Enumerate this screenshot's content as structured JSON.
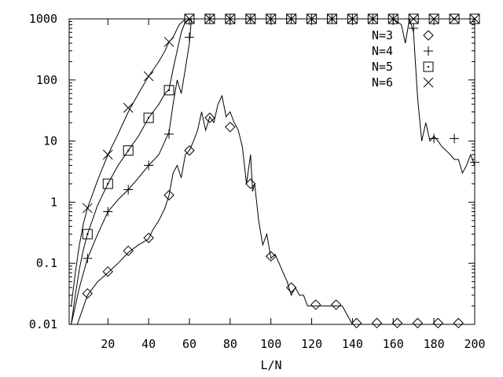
{
  "chart_data": {
    "type": "line",
    "xlabel": "L/N",
    "ylabel": "",
    "xlim": [
      1,
      200
    ],
    "ylim": [
      0.01,
      1000
    ],
    "yscale": "log",
    "grid": false,
    "legend_position": "top-right",
    "x_ticks": [
      20,
      40,
      60,
      80,
      100,
      120,
      140,
      160,
      180,
      200
    ],
    "x_tick_labels": [
      "20",
      "40",
      "60",
      "80",
      "100",
      "120",
      "140",
      "160",
      "180",
      "200"
    ],
    "y_ticks": [
      0.01,
      0.1,
      1,
      10,
      100,
      1000
    ],
    "y_tick_labels": [
      "0.01",
      "0.1",
      "1",
      "10",
      "100",
      "1000"
    ],
    "series": [
      {
        "name": "N=3",
        "marker": "diamond",
        "x": [
          2,
          5,
          10,
          15,
          20,
          25,
          30,
          35,
          40,
          42,
          45,
          48,
          50,
          52,
          54,
          56,
          58,
          60,
          62,
          64,
          66,
          68,
          70,
          72,
          74,
          76,
          78,
          80,
          82,
          84,
          86,
          88,
          90,
          91,
          92,
          94,
          96,
          98,
          100,
          102,
          104,
          106,
          108,
          110,
          112,
          114,
          116,
          118,
          120,
          125,
          130,
          135,
          140,
          142,
          145,
          150,
          160,
          170,
          180,
          190,
          200
        ],
        "y": [
          0.01,
          0.01,
          0.03,
          0.05,
          0.07,
          0.1,
          0.15,
          0.2,
          0.25,
          0.35,
          0.5,
          0.8,
          1.3,
          3,
          4,
          2.5,
          6,
          7,
          10,
          15,
          30,
          15,
          25,
          20,
          40,
          55,
          25,
          30,
          20,
          15,
          8,
          2,
          6,
          1.5,
          2,
          0.5,
          0.2,
          0.3,
          0.12,
          0.14,
          0.1,
          0.07,
          0.05,
          0.03,
          0.04,
          0.03,
          0.03,
          0.02,
          0.02,
          0.02,
          0.02,
          0.02,
          0.01,
          0.01,
          0.01,
          0.01,
          0.01,
          0.01,
          0.01,
          0.01,
          0.01
        ],
        "marker_x": [
          10,
          20,
          30,
          40,
          50,
          60,
          70,
          80,
          90,
          100,
          110,
          122,
          132,
          142,
          152,
          162,
          172,
          182,
          192
        ],
        "marker_y": [
          0.032,
          0.073,
          0.16,
          0.26,
          1.3,
          7,
          24,
          17,
          2,
          0.13,
          0.04,
          0.021,
          0.021,
          0.0105,
          0.0105,
          0.0105,
          0.0105,
          0.0105,
          0.0105
        ]
      },
      {
        "name": "N=4",
        "marker": "plus",
        "x": [
          2,
          4,
          6,
          8,
          10,
          15,
          20,
          25,
          30,
          35,
          40,
          45,
          48,
          50,
          52,
          54,
          56,
          58,
          60,
          61,
          62,
          64,
          66,
          80,
          100,
          120,
          140,
          160,
          164,
          166,
          168,
          170,
          172,
          174,
          176,
          178,
          180,
          182,
          184,
          186,
          188,
          190,
          192,
          194,
          196,
          198,
          200
        ],
        "y": [
          0.01,
          0.02,
          0.04,
          0.07,
          0.12,
          0.3,
          0.7,
          1.1,
          1.6,
          2.5,
          4,
          6,
          10,
          14,
          40,
          100,
          60,
          150,
          400,
          1000,
          1000,
          1000,
          1000,
          1000,
          1000,
          1000,
          1000,
          1000,
          800,
          400,
          1000,
          600,
          50,
          10,
          20,
          10,
          12,
          10,
          8,
          7,
          6,
          5,
          5,
          3,
          4,
          6,
          4
        ],
        "marker_x": [
          10,
          20,
          30,
          40,
          50,
          60,
          70,
          80,
          90,
          100,
          110,
          120,
          130,
          140,
          150,
          160,
          170,
          180,
          190,
          200
        ],
        "marker_y": [
          0.12,
          0.7,
          1.6,
          4,
          13,
          500,
          1000,
          1000,
          1000,
          1000,
          1000,
          1000,
          1000,
          1000,
          1000,
          1000,
          700,
          11,
          11,
          4.5
        ]
      },
      {
        "name": "N=5",
        "marker": "square",
        "x": [
          2,
          4,
          6,
          8,
          10,
          15,
          20,
          25,
          30,
          35,
          40,
          45,
          48,
          50,
          52,
          54,
          56,
          58,
          60,
          70,
          100,
          140,
          170,
          200
        ],
        "y": [
          0.01,
          0.03,
          0.08,
          0.17,
          0.3,
          0.9,
          2,
          4,
          7,
          12,
          24,
          40,
          60,
          70,
          150,
          300,
          600,
          900,
          1000,
          1000,
          1000,
          1000,
          1000,
          1000
        ],
        "marker_x": [
          10,
          20,
          30,
          40,
          50,
          60,
          70,
          80,
          90,
          100,
          110,
          120,
          130,
          140,
          150,
          160,
          170,
          180,
          190,
          200
        ],
        "marker_y": [
          0.3,
          2,
          7,
          24,
          68,
          1000,
          1000,
          1000,
          1000,
          1000,
          1000,
          1000,
          1000,
          1000,
          1000,
          1000,
          1000,
          1000,
          1000,
          1000
        ]
      },
      {
        "name": "N=6",
        "marker": "x",
        "x": [
          2,
          4,
          6,
          8,
          10,
          15,
          20,
          25,
          30,
          35,
          40,
          45,
          48,
          50,
          52,
          55,
          58,
          60,
          70,
          100,
          140,
          170,
          200
        ],
        "y": [
          0.02,
          0.07,
          0.2,
          0.45,
          0.8,
          2.3,
          6,
          13,
          30,
          60,
          115,
          200,
          300,
          420,
          500,
          800,
          1000,
          1000,
          1000,
          1000,
          1000,
          1000,
          1000
        ],
        "marker_x": [
          10,
          20,
          30,
          40,
          50,
          60,
          70,
          80,
          90,
          100,
          110,
          120,
          130,
          140,
          150,
          160,
          170,
          180,
          190,
          200
        ],
        "marker_y": [
          0.8,
          6,
          35,
          115,
          420,
          1000,
          1000,
          1000,
          1000,
          1000,
          1000,
          1000,
          1000,
          1000,
          1000,
          1000,
          1000,
          1000,
          1000,
          1000
        ]
      }
    ]
  }
}
